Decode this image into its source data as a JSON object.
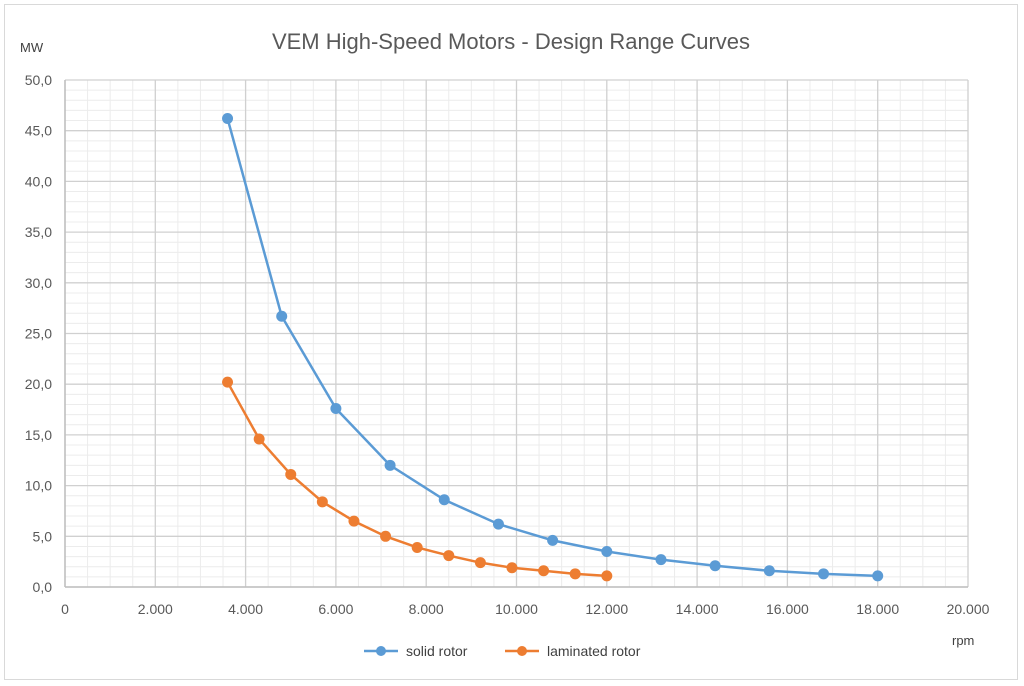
{
  "chart_data": {
    "type": "line",
    "title": "VEM High-Speed Motors - Design Range Curves",
    "xlabel": "rpm",
    "ylabel": "MW",
    "xlim": [
      0,
      20000
    ],
    "ylim": [
      0,
      50
    ],
    "x_ticks": [
      0,
      2000,
      4000,
      6000,
      8000,
      10000,
      12000,
      14000,
      16000,
      18000,
      20000
    ],
    "x_tick_labels": [
      "0",
      "2.000",
      "4.000",
      "6.000",
      "8.000",
      "10.000",
      "12.000",
      "14.000",
      "16.000",
      "18.000",
      "20.000"
    ],
    "y_ticks": [
      0,
      5,
      10,
      15,
      20,
      25,
      30,
      35,
      40,
      45,
      50
    ],
    "y_tick_labels": [
      "0,0",
      "5,0",
      "10,0",
      "15,0",
      "20,0",
      "25,0",
      "30,0",
      "35,0",
      "40,0",
      "45,0",
      "50,0"
    ],
    "grid": true,
    "legend_position": "bottom",
    "series": [
      {
        "name": "solid rotor",
        "color": "#5b9bd5",
        "x": [
          3600,
          4800,
          6000,
          7200,
          8400,
          9600,
          10800,
          12000,
          13200,
          14400,
          15600,
          16800,
          18000
        ],
        "y": [
          46.2,
          26.7,
          17.6,
          12.0,
          8.6,
          6.2,
          4.6,
          3.5,
          2.7,
          2.1,
          1.6,
          1.3,
          1.1
        ]
      },
      {
        "name": "laminated rotor",
        "color": "#ed7d31",
        "x": [
          3600,
          4300,
          5000,
          5700,
          6400,
          7100,
          7800,
          8500,
          9200,
          9900,
          10600,
          11300,
          12000
        ],
        "y": [
          20.2,
          14.6,
          11.1,
          8.4,
          6.5,
          5.0,
          3.9,
          3.1,
          2.4,
          1.9,
          1.6,
          1.3,
          1.1
        ]
      }
    ]
  }
}
